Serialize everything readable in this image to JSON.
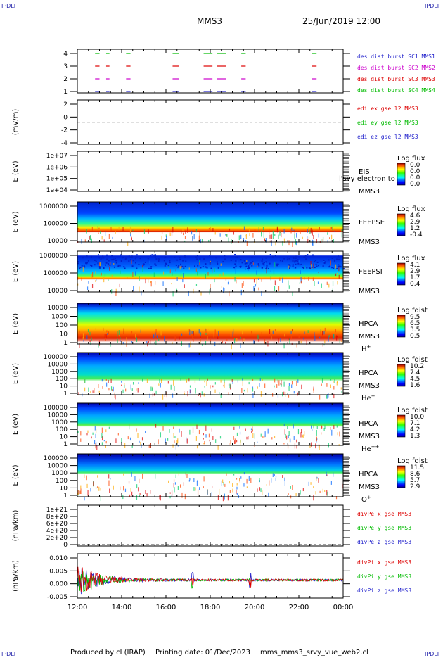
{
  "corner_label": "IPDLI",
  "title": "MMS3",
  "datetime": "25/Jun/2019 12:00",
  "footer": {
    "producer": "Produced by cl (IRAP)",
    "printing": "Printing date: 01/Dec/2023",
    "file": "mms_mms3_srvy_vue_web2.cl"
  },
  "colors": {
    "blue": "#2222cc",
    "magenta": "#cc00cc",
    "red": "#dd0000",
    "green": "#00bb00"
  },
  "chart_data": {
    "type": "multi-panel time series / spectrogram",
    "time_axis": {
      "start": "12:00",
      "end": "00:00",
      "ticks": [
        "12:00",
        "14:00",
        "16:00",
        "18:00",
        "20:00",
        "22:00",
        "00:00"
      ]
    },
    "panels": [
      {
        "id": "burst",
        "type": "flags",
        "ylabel": "",
        "yticks": [
          "4",
          "3",
          "2",
          "1"
        ],
        "series": [
          {
            "name": "des dist burst SC1 MMS1",
            "color": "#2222cc",
            "level": 1
          },
          {
            "name": "des dist burst SC2 MMS2",
            "color": "#cc00cc",
            "level": 2
          },
          {
            "name": "des dist burst SC3 MMS3",
            "color": "#dd0000",
            "level": 3
          },
          {
            "name": "des dist burst SC4 MMS4",
            "color": "#00bb00",
            "level": 4
          }
        ],
        "intervals_hours": [
          [
            0.8,
            1.0
          ],
          [
            1.3,
            1.45
          ],
          [
            2.2,
            2.4
          ],
          [
            4.3,
            4.6
          ],
          [
            5.7,
            6.1
          ],
          [
            6.3,
            6.7
          ],
          [
            7.4,
            7.6
          ],
          [
            10.6,
            10.8
          ]
        ]
      },
      {
        "id": "edi",
        "type": "line",
        "ylabel": "(mV/m)",
        "yticks": [
          "2",
          "0",
          "-2",
          "-4"
        ],
        "ylim": [
          -4,
          3.5
        ],
        "series": [
          {
            "name": "edi ex gse l2 MMS3",
            "color": "#dd0000"
          },
          {
            "name": "edi ey gse l2 MMS3",
            "color": "#00bb00"
          },
          {
            "name": "edi ez gse l2 MMS3",
            "color": "#2222cc"
          }
        ]
      },
      {
        "id": "eis",
        "type": "spectrogram",
        "ylabel": "E (eV)",
        "yticks": [
          "1e+07",
          "1e+06",
          "1e+05",
          "1e+04"
        ],
        "label": "EIS",
        "label2": "MMS3",
        "overlay_label": "l'svy electron to",
        "cbar": {
          "title": "Log flux",
          "ticks": [
            "0.0",
            "0.0",
            "0.0",
            "0.0"
          ]
        }
      },
      {
        "id": "feepse",
        "type": "spectrogram",
        "ylabel": "E (eV)",
        "yticks": [
          "1000000",
          "100000",
          "10000"
        ],
        "label": "FEEPSE",
        "label2": "MMS3",
        "cbar": {
          "title": "Log flux",
          "ticks": [
            "4.6",
            "2.9",
            "1.2",
            "-0.4"
          ]
        }
      },
      {
        "id": "feepsi",
        "type": "spectrogram",
        "ylabel": "E (eV)",
        "yticks": [
          "1000000",
          "100000",
          "10000"
        ],
        "label": "FEEPSI",
        "label2": "MMS3",
        "cbar": {
          "title": "Log flux",
          "ticks": [
            "4.1",
            "2.9",
            "1.7",
            "0.4"
          ]
        }
      },
      {
        "id": "hpca_h",
        "type": "spectrogram",
        "ylabel": "E (eV)",
        "yticks": [
          "10000",
          "1000",
          "100",
          "10",
          "1"
        ],
        "label": "HPCA",
        "label2": "MMS3",
        "species": "H",
        "species_sup": "+",
        "cbar": {
          "title": "Log fdist",
          "ticks": [
            "9.5",
            "6.5",
            "3.5",
            "0.5"
          ]
        }
      },
      {
        "id": "hpca_he",
        "type": "spectrogram",
        "ylabel": "E (eV)",
        "yticks": [
          "100000",
          "10000",
          "1000",
          "100",
          "10",
          "1"
        ],
        "label": "HPCA",
        "label2": "MMS3",
        "species": "He",
        "species_sup": "+",
        "cbar": {
          "title": "Log fdist",
          "ticks": [
            "10.2",
            "7.4",
            "4.5",
            "1.6"
          ]
        }
      },
      {
        "id": "hpca_hepp",
        "type": "spectrogram",
        "ylabel": "E (eV)",
        "yticks": [
          "100000",
          "10000",
          "1000",
          "100",
          "10",
          "1"
        ],
        "label": "HPCA",
        "label2": "MMS3",
        "species": "He",
        "species_sup": "++",
        "cbar": {
          "title": "Log fdist",
          "ticks": [
            "10.0",
            "7.1",
            "4.2",
            "1.3"
          ]
        }
      },
      {
        "id": "hpca_o",
        "type": "spectrogram",
        "ylabel": "E (eV)",
        "yticks": [
          "100000",
          "10000",
          "1000",
          "100",
          "10",
          "1"
        ],
        "label": "HPCA",
        "label2": "MMS3",
        "species": "O",
        "species_sup": "+",
        "cbar": {
          "title": "Log fdist",
          "ticks": [
            "11.5",
            "8.6",
            "5.7",
            "2.9"
          ]
        }
      },
      {
        "id": "divpe",
        "type": "line",
        "ylabel": "(nPa/km)",
        "yticks": [
          "1e+21",
          "8e+20",
          "6e+20",
          "4e+20",
          "2e+20",
          "0"
        ],
        "ylim": [
          0,
          1e+21
        ],
        "series": [
          {
            "name": "divPe x gse MMS3",
            "color": "#dd0000"
          },
          {
            "name": "divPe y gse MMS3",
            "color": "#00bb00"
          },
          {
            "name": "divPe z gse MMS3",
            "color": "#2222cc"
          }
        ]
      },
      {
        "id": "divpi",
        "type": "line",
        "ylabel": "(nPa/km)",
        "yticks": [
          "0.010",
          "0.005",
          "0.000",
          "-0.005"
        ],
        "ylim": [
          -0.009,
          0.012
        ],
        "series": [
          {
            "name": "divPi x gse MMS3",
            "color": "#dd0000"
          },
          {
            "name": "divPi y gse MMS3",
            "color": "#00bb00"
          },
          {
            "name": "divPi z gse MMS3",
            "color": "#2222cc"
          }
        ]
      }
    ]
  }
}
